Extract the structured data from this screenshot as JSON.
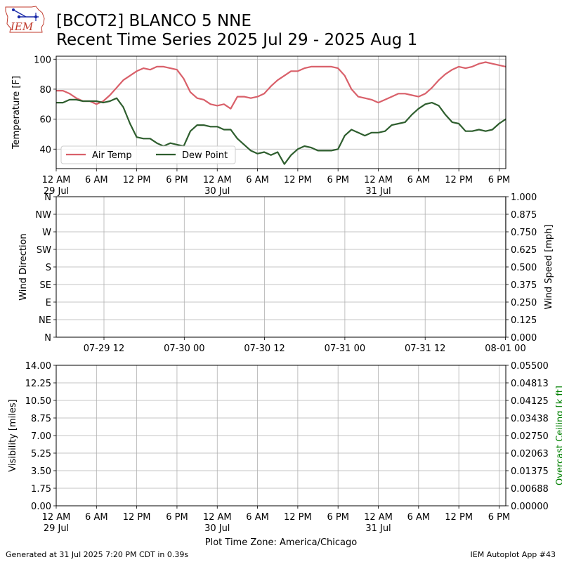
{
  "header": {
    "title_line1": "[BCOT2] BLANCO 5 NNE",
    "title_line2": "Recent Time Series 2025 Jul 29 - 2025 Aug 1",
    "logo_text": "IEM"
  },
  "footer": {
    "generated": "Generated at 31 Jul 2025 7:20 PM CDT in 0.39s",
    "app": "IEM Autoplot App #43"
  },
  "colors": {
    "air_temp": "#d9606a",
    "dew_point": "#2e5e2e",
    "grid": "#b0b0b0",
    "ceiling_label": "#008000"
  },
  "chart_data": [
    {
      "type": "line",
      "ylabel": "Temperature [F]",
      "ylim": [
        27,
        102
      ],
      "yticks": [
        40,
        60,
        80,
        100
      ],
      "x_unit": "hours since 2025-07-29 00:00 CDT",
      "xlim": [
        0,
        67
      ],
      "xticks": [
        0,
        6,
        12,
        18,
        24,
        30,
        36,
        42,
        48,
        54,
        60,
        66
      ],
      "xtick_labels": [
        "12 AM",
        "6 AM",
        "12 PM",
        "6 PM",
        "12 AM",
        "6 AM",
        "12 PM",
        "6 PM",
        "12 AM",
        "6 AM",
        "12 PM",
        "6 PM"
      ],
      "xtick_sublabels": {
        "0": "29 Jul",
        "24": "30 Jul",
        "48": "31 Jul"
      },
      "grid": true,
      "legend": "lower-left",
      "series": [
        {
          "name": "Air Temp",
          "x": [
            0,
            1,
            2,
            3,
            4,
            5,
            6,
            7,
            8,
            9,
            10,
            11,
            12,
            13,
            14,
            15,
            16,
            17,
            18,
            19,
            20,
            21,
            22,
            23,
            24,
            25,
            26,
            27,
            28,
            29,
            30,
            31,
            32,
            33,
            34,
            35,
            36,
            37,
            38,
            39,
            40,
            41,
            42,
            43,
            44,
            45,
            46,
            47,
            48,
            49,
            50,
            51,
            52,
            53,
            54,
            55,
            56,
            57,
            58,
            59,
            60,
            61,
            62,
            63,
            64,
            65,
            66,
            67
          ],
          "values": [
            79,
            79,
            77,
            74,
            72,
            72,
            70,
            72,
            76,
            81,
            86,
            89,
            92,
            94,
            93,
            95,
            95,
            94,
            93,
            87,
            78,
            74,
            73,
            70,
            69,
            70,
            67,
            75,
            75,
            74,
            75,
            77,
            82,
            86,
            89,
            92,
            92,
            94,
            95,
            95,
            95,
            95,
            94,
            89,
            80,
            75,
            74,
            73,
            71,
            73,
            75,
            77,
            77,
            76,
            75,
            77,
            81,
            86,
            90,
            93,
            95,
            94,
            95,
            97,
            98,
            97,
            96,
            95
          ]
        },
        {
          "name": "Dew Point",
          "x": [
            0,
            1,
            2,
            3,
            4,
            5,
            6,
            7,
            8,
            9,
            10,
            11,
            12,
            13,
            14,
            15,
            16,
            17,
            18,
            19,
            20,
            21,
            22,
            23,
            24,
            25,
            26,
            27,
            28,
            29,
            30,
            31,
            32,
            33,
            34,
            35,
            36,
            37,
            38,
            39,
            40,
            41,
            42,
            43,
            44,
            45,
            46,
            47,
            48,
            49,
            50,
            51,
            52,
            53,
            54,
            55,
            56,
            57,
            58,
            59,
            60,
            61,
            62,
            63,
            64,
            65,
            66,
            67
          ],
          "values": [
            71,
            71,
            73,
            73,
            72,
            72,
            72,
            71,
            72,
            74,
            68,
            57,
            48,
            47,
            47,
            44,
            42,
            44,
            43,
            42,
            52,
            56,
            56,
            55,
            55,
            53,
            53,
            47,
            43,
            39,
            37,
            38,
            36,
            38,
            30,
            36,
            40,
            42,
            41,
            39,
            39,
            39,
            40,
            49,
            53,
            51,
            49,
            51,
            51,
            52,
            56,
            57,
            58,
            63,
            67,
            70,
            71,
            69,
            63,
            58,
            57,
            52,
            52,
            53,
            52,
            53,
            57,
            60
          ]
        }
      ]
    },
    {
      "type": "line",
      "ylabel": "Wind Direction",
      "ylabel_right": "Wind Speed [mph]",
      "ytick_labels": [
        "N",
        "NE",
        "E",
        "SE",
        "S",
        "SW",
        "W",
        "NW",
        "N"
      ],
      "right_ylim": [
        0,
        1
      ],
      "right_ytick_labels": [
        "0.000",
        "0.125",
        "0.250",
        "0.375",
        "0.500",
        "0.625",
        "0.750",
        "0.875",
        "1.000"
      ],
      "xtick_labels": [
        "07-29 12",
        "07-30 00",
        "07-30 12",
        "07-31 00",
        "07-31 12",
        "08-01 00"
      ],
      "grid": true,
      "series": []
    },
    {
      "type": "line",
      "ylabel": "Visibility [miles]",
      "ylabel_right": "Overcast Ceiling [k ft]",
      "ylim": [
        0,
        14
      ],
      "ytick_labels": [
        "0.00",
        "1.75",
        "3.50",
        "5.25",
        "7.00",
        "8.75",
        "10.50",
        "12.25",
        "14.00"
      ],
      "right_ylim": [
        0,
        0.055
      ],
      "right_ytick_labels": [
        "0.00000",
        "0.00688",
        "0.01375",
        "0.02063",
        "0.02750",
        "0.03438",
        "0.04125",
        "0.04813",
        "0.05500"
      ],
      "xtick_labels": [
        "12 AM",
        "6 AM",
        "12 PM",
        "6 PM",
        "12 AM",
        "6 AM",
        "12 PM",
        "6 PM",
        "12 AM",
        "6 AM",
        "12 PM",
        "6 PM"
      ],
      "xtick_sublabels": {
        "0": "29 Jul",
        "24": "30 Jul",
        "48": "31 Jul"
      },
      "xlabel": "Plot Time Zone: America/Chicago",
      "grid": true,
      "series": []
    }
  ]
}
